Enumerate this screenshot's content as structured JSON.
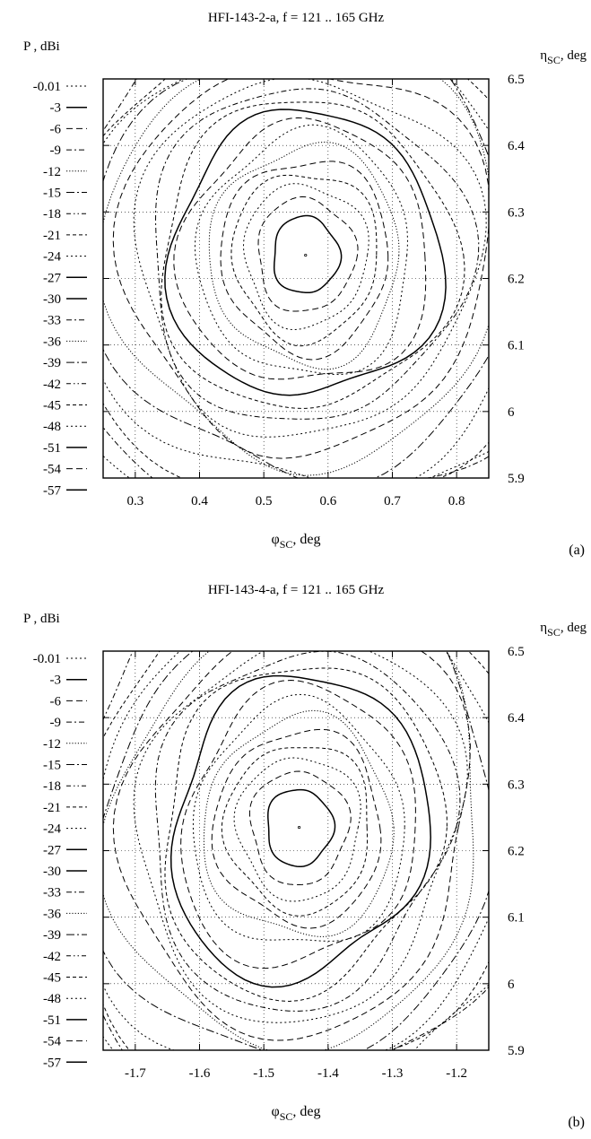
{
  "chart_data": [
    {
      "type": "contour",
      "title": "HFI-143-2-a,    f =  121 .. 165  GHz",
      "legend_title": "P ,  dBi",
      "xlabel": "φ",
      "xlabel_sub": "SC",
      "xlabel_unit": ", deg",
      "ylabel": "η",
      "ylabel_sub": "SC",
      "ylabel_unit": ", deg",
      "panel_label": "(a)",
      "xlim": [
        0.25,
        0.85
      ],
      "ylim": [
        5.9,
        6.5
      ],
      "xticks": [
        {
          "value": 0.3,
          "label": "0.3"
        },
        {
          "value": 0.4,
          "label": "0.4"
        },
        {
          "value": 0.5,
          "label": "0.5"
        },
        {
          "value": 0.6,
          "label": "0.6"
        },
        {
          "value": 0.7,
          "label": "0.7"
        },
        {
          "value": 0.8,
          "label": "0.8"
        }
      ],
      "yticks": [
        {
          "value": 5.9,
          "label": "5.9"
        },
        {
          "value": 6.0,
          "label": "6"
        },
        {
          "value": 6.1,
          "label": "6.1"
        },
        {
          "value": 6.2,
          "label": "6.2"
        },
        {
          "value": 6.3,
          "label": "6.3"
        },
        {
          "value": 6.4,
          "label": "6.4"
        },
        {
          "value": 6.5,
          "label": "6.5"
        }
      ],
      "grid": true,
      "levels": [
        "-0.01",
        "-3",
        "-6",
        "-9",
        "-12",
        "-15",
        "-18",
        "-21",
        "-24",
        "-27",
        "-30",
        "-33",
        "-36",
        "-39",
        "-42",
        "-45",
        "-48",
        "-51",
        "-54",
        "-57"
      ],
      "peak": {
        "x": 0.565,
        "y": 6.235
      }
    },
    {
      "type": "contour",
      "title": "HFI-143-4-a,    f =  121 .. 165  GHz",
      "legend_title": "P ,  dBi",
      "xlabel": "φ",
      "xlabel_sub": "SC",
      "xlabel_unit": ", deg",
      "ylabel": "η",
      "ylabel_sub": "SC",
      "ylabel_unit": ", deg",
      "panel_label": "(b)",
      "xlim": [
        -1.75,
        -1.15
      ],
      "ylim": [
        5.9,
        6.5
      ],
      "xticks": [
        {
          "value": -1.7,
          "label": "-1.7"
        },
        {
          "value": -1.6,
          "label": "-1.6"
        },
        {
          "value": -1.5,
          "label": "-1.5"
        },
        {
          "value": -1.4,
          "label": "-1.4"
        },
        {
          "value": -1.3,
          "label": "-1.3"
        },
        {
          "value": -1.2,
          "label": "-1.2"
        }
      ],
      "yticks": [
        {
          "value": 5.9,
          "label": "5.9"
        },
        {
          "value": 6.0,
          "label": "6"
        },
        {
          "value": 6.1,
          "label": "6.1"
        },
        {
          "value": 6.2,
          "label": "6.2"
        },
        {
          "value": 6.3,
          "label": "6.3"
        },
        {
          "value": 6.4,
          "label": "6.4"
        },
        {
          "value": 6.5,
          "label": "6.5"
        }
      ],
      "grid": true,
      "levels": [
        "-0.01",
        "-3",
        "-6",
        "-9",
        "-12",
        "-15",
        "-18",
        "-21",
        "-24",
        "-27",
        "-30",
        "-33",
        "-36",
        "-39",
        "-42",
        "-45",
        "-48",
        "-51",
        "-54",
        "-57"
      ],
      "peak": {
        "x": -1.445,
        "y": 6.235
      }
    }
  ]
}
